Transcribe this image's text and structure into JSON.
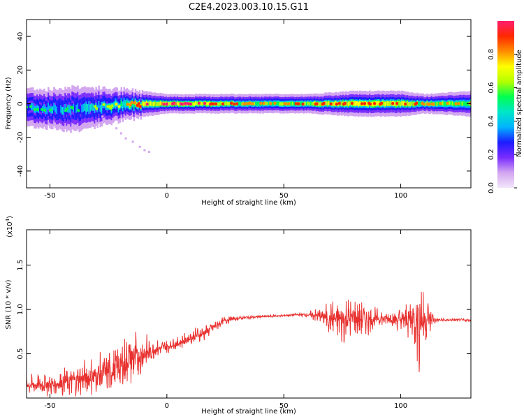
{
  "title": "C2E4.2023.003.10.15.G11",
  "chart_data": [
    {
      "type": "heatmap",
      "xlabel": "Height of straight line (km)",
      "ylabel": "Frequency (Hz)",
      "xlim": [
        -60,
        130
      ],
      "ylim": [
        -50,
        50
      ],
      "xticks": [
        -50,
        0,
        50,
        100
      ],
      "xtick_labels": [
        "-50",
        "0",
        "50",
        "100"
      ],
      "yticks": [
        -40,
        -20,
        0,
        20,
        40
      ],
      "ytick_labels": [
        "-40",
        "-20",
        "0",
        "20",
        "40"
      ],
      "colorbar": {
        "label": "Normalized spectral amplitude",
        "range": [
          0,
          1
        ],
        "ticks": [
          0.0,
          0.2,
          0.4,
          0.6,
          0.8
        ],
        "tick_labels": [
          "0.0",
          "0.2",
          "0.4",
          "0.6",
          "0.8"
        ],
        "colors": [
          "#f2e6fa",
          "#d3a6f0",
          "#7a2cff",
          "#1c1cff",
          "#00b4ff",
          "#00e6c8",
          "#00ff50",
          "#b4ff00",
          "#ffff00",
          "#ff8c00",
          "#ff2800",
          "#ff1e6e"
        ]
      },
      "band": {
        "x": [
          -60,
          -50,
          -40,
          -30,
          -20,
          -10,
          0,
          20,
          40,
          60,
          80,
          100,
          110,
          130
        ],
        "center_hz": [
          -2,
          -3,
          -3,
          -2,
          -1,
          0,
          0,
          0,
          0,
          0,
          0,
          0,
          0,
          0
        ],
        "halfwidth_hz": [
          6,
          6,
          7,
          6,
          5,
          4,
          3,
          3,
          3,
          3,
          4,
          4,
          3,
          4
        ],
        "peak_amplitude": [
          0.4,
          0.45,
          0.45,
          0.5,
          0.6,
          0.85,
          0.95,
          0.85,
          0.7,
          0.8,
          0.85,
          0.85,
          0.75,
          0.7
        ]
      },
      "scatter_x": [
        -28,
        -25,
        -22,
        -20,
        -18,
        -15,
        -12,
        -10,
        -8
      ],
      "scatter_y": [
        -7,
        -10,
        -14,
        -17,
        -20,
        -22,
        -25,
        -27,
        -28
      ]
    },
    {
      "type": "line",
      "xlabel": "Height of straight line (km)",
      "ylabel": "SNR (10 * v/v)",
      "y_multiplier_label": "(x10",
      "y_multiplier_exp": "4",
      "y_multiplier_close": ")",
      "xlim": [
        -60,
        130
      ],
      "ylim": [
        0,
        1.9
      ],
      "xticks": [
        -50,
        0,
        50,
        100
      ],
      "xtick_labels": [
        "-50",
        "0",
        "50",
        "100"
      ],
      "yticks": [
        0.5,
        1.0,
        1.5
      ],
      "ytick_labels": [
        "0.5",
        "1.0",
        "1.5"
      ],
      "color": "#e8312f",
      "envelope": {
        "x": [
          -60,
          -50,
          -40,
          -30,
          -20,
          -15,
          -10,
          -5,
          0,
          5,
          10,
          15,
          20,
          25,
          30,
          40,
          50,
          55,
          60,
          65,
          70,
          75,
          80,
          85,
          90,
          95,
          100,
          105,
          108,
          110,
          115,
          120,
          130
        ],
        "mean": [
          0.15,
          0.15,
          0.2,
          0.25,
          0.35,
          0.45,
          0.5,
          0.55,
          0.58,
          0.62,
          0.68,
          0.72,
          0.8,
          0.88,
          0.9,
          0.92,
          0.93,
          0.94,
          0.94,
          0.93,
          0.9,
          0.88,
          0.9,
          0.88,
          0.9,
          0.9,
          0.88,
          0.9,
          0.9,
          0.89,
          0.88,
          0.88,
          0.88
        ],
        "amplitude": [
          0.12,
          0.15,
          0.2,
          0.25,
          0.3,
          0.35,
          0.25,
          0.12,
          0.08,
          0.08,
          0.1,
          0.1,
          0.08,
          0.05,
          0.03,
          0.02,
          0.02,
          0.02,
          0.03,
          0.1,
          0.2,
          0.3,
          0.25,
          0.2,
          0.12,
          0.1,
          0.15,
          0.3,
          0.7,
          0.4,
          0.03,
          0.02,
          0.02
        ]
      }
    }
  ]
}
